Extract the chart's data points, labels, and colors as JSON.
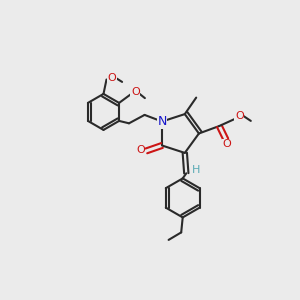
{
  "background_color": "#ebebeb",
  "bond_color": "#2a2a2a",
  "N_color": "#1515cc",
  "O_color": "#cc1515",
  "H_color": "#5aabb5",
  "line_width": 1.5,
  "dbo": 0.012,
  "figsize": [
    3.0,
    3.0
  ],
  "dpi": 100,
  "font_size": 7.5,
  "xlim": [
    0,
    1
  ],
  "ylim": [
    0,
    1
  ]
}
